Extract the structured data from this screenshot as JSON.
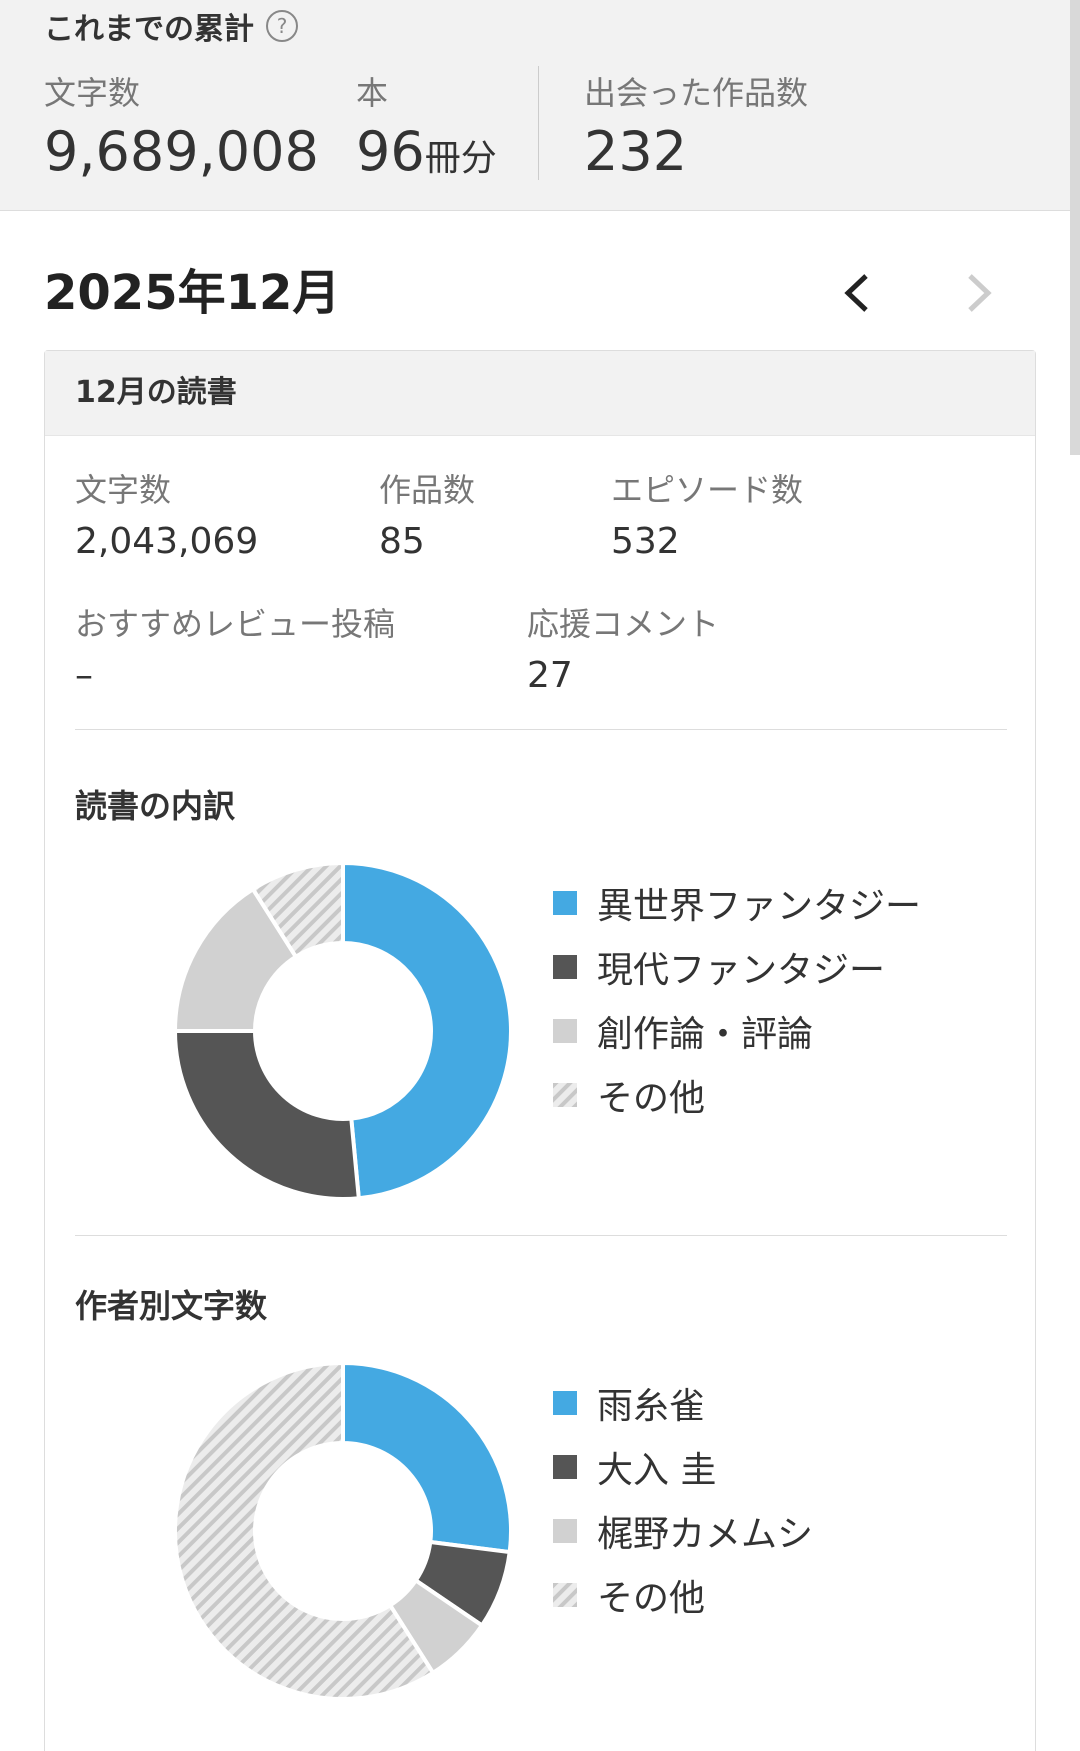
{
  "summary": {
    "title": "これまでの累計",
    "help_icon": "?",
    "chars_label": "文字数",
    "chars_value": "9,689,008",
    "books_label": "本",
    "books_value": "96",
    "books_unit": "冊分",
    "works_label": "出会った作品数",
    "works_value": "232"
  },
  "month": {
    "title": "2025年12月",
    "prev_icon": "chevron-left-icon",
    "next_icon": "chevron-right-icon"
  },
  "card": {
    "header": "12月の読書",
    "stats": [
      {
        "label": "文字数",
        "value": "2,043,069"
      },
      {
        "label": "作品数",
        "value": "85"
      },
      {
        "label": "エピソード数",
        "value": "532"
      },
      {
        "label": "おすすめレビュー投稿",
        "value": "–"
      },
      {
        "label": "応援コメント",
        "value": "27"
      }
    ]
  },
  "colors": {
    "blue": "#44a9e2",
    "dark": "#555555",
    "light": "#d1d1d1",
    "stripe": "#c8c8c8"
  },
  "genre_section": {
    "title": "読書の内訳",
    "legend": [
      "異世界ファンタジー",
      "現代ファンタジー",
      "創作論・評論",
      "その他"
    ]
  },
  "author_section": {
    "title": "作者別文字数",
    "legend": [
      "雨糸雀",
      "大入 圭",
      "梶野カメムシ",
      "その他"
    ]
  },
  "chart_data": [
    {
      "type": "pie",
      "categories": [
        "異世界ファンタジー",
        "現代ファンタジー",
        "創作論・評論",
        "その他"
      ],
      "values": [
        48.5,
        26.5,
        16,
        9
      ],
      "colors": [
        "#44a9e2",
        "#555555",
        "#d1d1d1",
        "striped"
      ],
      "donut": true
    },
    {
      "type": "pie",
      "categories": [
        "雨糸雀",
        "大入 圭",
        "梶野カメムシ",
        "その他"
      ],
      "values": [
        27,
        7.5,
        6.5,
        59
      ],
      "colors": [
        "#44a9e2",
        "#555555",
        "#d1d1d1",
        "striped"
      ],
      "donut": true
    }
  ]
}
